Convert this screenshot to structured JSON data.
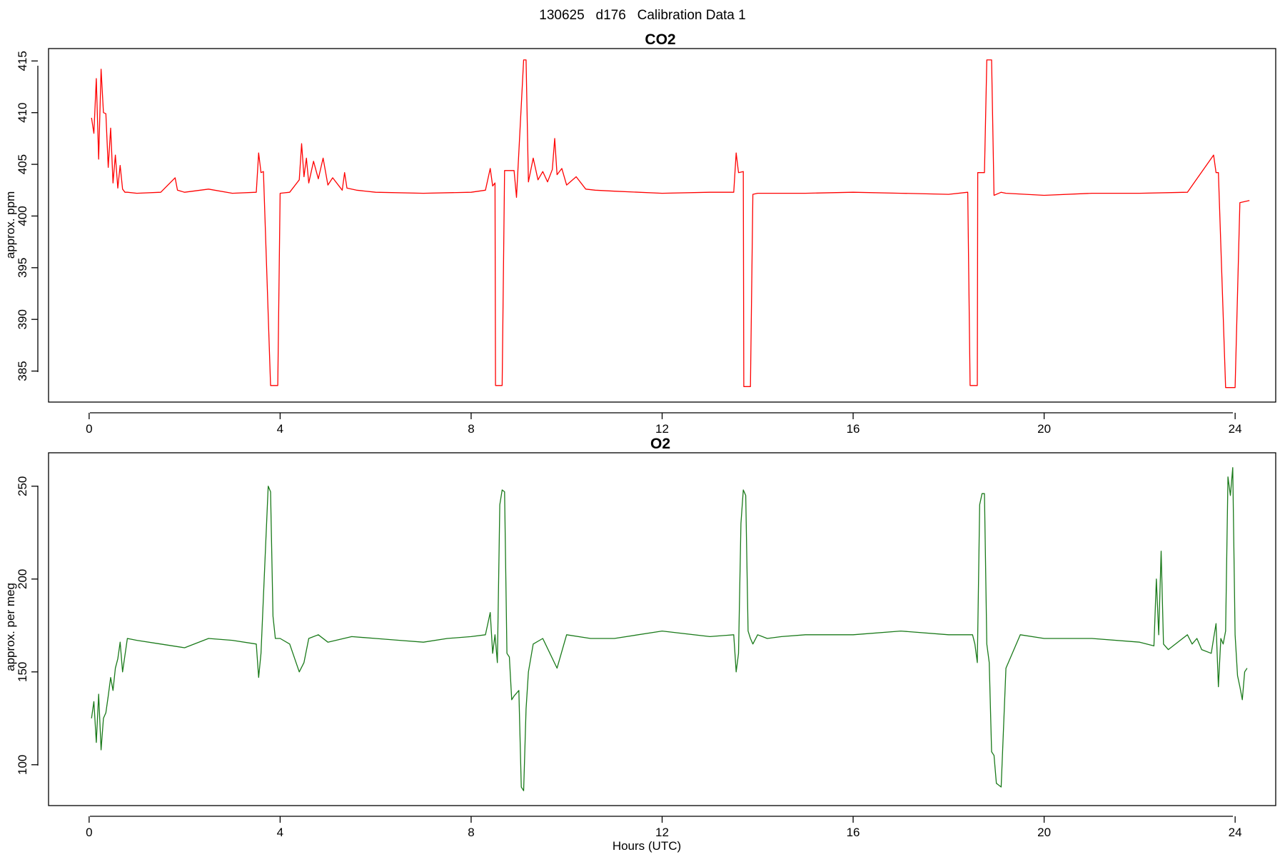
{
  "figure": {
    "suptitle": "130625   d176   Calibration Data 1"
  },
  "chart_data": [
    {
      "type": "line",
      "title": "CO2",
      "xlabel": "",
      "ylabel": "approx. ppm",
      "xlim": [
        -0.85,
        24.85
      ],
      "ylim": [
        382.0,
        416.2
      ],
      "xticks": [
        0,
        4,
        8,
        12,
        16,
        20,
        24
      ],
      "yticks": [
        385,
        390,
        395,
        400,
        405,
        410,
        415
      ],
      "grid": false,
      "color": "#ff0000",
      "series": [
        {
          "x": [
            0.05,
            0.1,
            0.15,
            0.2,
            0.25,
            0.3,
            0.35,
            0.4,
            0.45,
            0.5,
            0.55,
            0.6,
            0.65,
            0.7,
            0.75,
            0.8,
            1.0,
            1.5,
            1.8,
            1.85,
            2.0,
            2.5,
            3.0,
            3.5,
            3.55,
            3.6,
            3.65,
            3.8,
            3.81,
            3.95,
            4.0,
            4.2,
            4.4,
            4.45,
            4.5,
            4.55,
            4.6,
            4.7,
            4.8,
            4.9,
            5.0,
            5.1,
            5.3,
            5.35,
            5.4,
            5.6,
            6.0,
            7.0,
            8.0,
            8.3,
            8.4,
            8.45,
            8.5,
            8.51,
            8.65,
            8.7,
            8.75,
            8.9,
            8.95,
            9.1,
            9.15,
            9.2,
            9.3,
            9.4,
            9.5,
            9.6,
            9.7,
            9.75,
            9.8,
            9.9,
            10.0,
            10.2,
            10.4,
            10.6,
            11.0,
            12.0,
            13.0,
            13.5,
            13.55,
            13.6,
            13.7,
            13.71,
            13.85,
            13.9,
            14.0,
            15.0,
            16.0,
            17.0,
            18.0,
            18.4,
            18.45,
            18.6,
            18.61,
            18.75,
            18.8,
            18.9,
            18.95,
            19.1,
            19.2,
            20.0,
            21.0,
            22.0,
            23.0,
            23.55,
            23.6,
            23.65,
            23.8,
            23.81,
            24.0,
            24.1,
            24.2,
            24.3
          ],
          "y": [
            409.5,
            408.0,
            413.3,
            405.5,
            414.2,
            410.0,
            409.9,
            404.7,
            408.5,
            403.2,
            405.9,
            402.7,
            404.9,
            402.6,
            402.3,
            402.3,
            402.2,
            402.3,
            403.7,
            402.5,
            402.3,
            402.6,
            402.2,
            402.3,
            406.1,
            404.2,
            404.3,
            383.6,
            383.6,
            383.6,
            402.2,
            402.3,
            403.5,
            407.0,
            403.8,
            405.6,
            403.2,
            405.3,
            403.6,
            405.6,
            403.0,
            403.7,
            402.5,
            404.2,
            402.7,
            402.5,
            402.3,
            402.2,
            402.3,
            402.5,
            404.6,
            402.9,
            403.2,
            383.6,
            383.6,
            404.4,
            404.4,
            404.4,
            401.8,
            415.1,
            415.1,
            403.3,
            405.6,
            403.5,
            404.3,
            403.3,
            404.5,
            407.5,
            404.0,
            404.6,
            403.0,
            403.8,
            402.6,
            402.5,
            402.4,
            402.2,
            402.3,
            402.3,
            406.1,
            404.2,
            404.3,
            383.5,
            383.5,
            402.1,
            402.2,
            402.2,
            402.3,
            402.2,
            402.1,
            402.3,
            383.6,
            383.6,
            404.2,
            404.2,
            415.1,
            415.1,
            402.0,
            402.3,
            402.2,
            402.0,
            402.2,
            402.2,
            402.3,
            405.9,
            404.2,
            404.2,
            383.4,
            383.4,
            383.4,
            401.3,
            401.4,
            401.5
          ]
        }
      ]
    },
    {
      "type": "line",
      "title": "O2",
      "xlabel": "Hours (UTC)",
      "ylabel": "approx. per meg",
      "xlim": [
        -0.85,
        24.85
      ],
      "ylim": [
        78,
        268
      ],
      "xticks": [
        0,
        4,
        8,
        12,
        16,
        20,
        24
      ],
      "yticks": [
        100,
        150,
        200,
        250
      ],
      "grid": false,
      "color": "#1a7a1a",
      "series": [
        {
          "x": [
            0.05,
            0.1,
            0.15,
            0.2,
            0.25,
            0.3,
            0.35,
            0.4,
            0.45,
            0.5,
            0.55,
            0.6,
            0.65,
            0.7,
            0.8,
            1.0,
            1.5,
            2.0,
            2.5,
            3.0,
            3.5,
            3.55,
            3.6,
            3.7,
            3.75,
            3.8,
            3.85,
            3.9,
            4.0,
            4.2,
            4.4,
            4.5,
            4.6,
            4.8,
            5.0,
            5.5,
            6.0,
            6.5,
            7.0,
            7.5,
            8.0,
            8.3,
            8.4,
            8.45,
            8.5,
            8.55,
            8.6,
            8.65,
            8.7,
            8.75,
            8.8,
            8.85,
            8.9,
            9.0,
            9.05,
            9.1,
            9.15,
            9.2,
            9.3,
            9.5,
            9.8,
            10.0,
            10.5,
            11.0,
            12.0,
            13.0,
            13.5,
            13.55,
            13.6,
            13.65,
            13.7,
            13.75,
            13.8,
            13.85,
            13.9,
            14.0,
            14.2,
            14.5,
            15.0,
            16.0,
            17.0,
            18.0,
            18.5,
            18.55,
            18.6,
            18.65,
            18.7,
            18.75,
            18.8,
            18.85,
            18.9,
            18.95,
            19.0,
            19.1,
            19.2,
            19.5,
            20.0,
            21.0,
            22.0,
            22.3,
            22.35,
            22.4,
            22.45,
            22.5,
            22.6,
            23.0,
            23.1,
            23.2,
            23.3,
            23.5,
            23.55,
            23.6,
            23.65,
            23.7,
            23.75,
            23.8,
            23.85,
            23.9,
            23.95,
            24.0,
            24.05,
            24.1,
            24.15,
            24.2,
            24.25
          ],
          "y": [
            125,
            134,
            112,
            138,
            108,
            125,
            128,
            137,
            147,
            140,
            152,
            157,
            166,
            150,
            168,
            167,
            165,
            163,
            168,
            167,
            165,
            147,
            160,
            220,
            250,
            247,
            180,
            168,
            168,
            165,
            150,
            155,
            168,
            170,
            166,
            169,
            168,
            167,
            166,
            168,
            169,
            170,
            182,
            160,
            170,
            155,
            240,
            248,
            247,
            160,
            158,
            135,
            137,
            140,
            88,
            86,
            130,
            150,
            165,
            168,
            152,
            170,
            168,
            168,
            172,
            169,
            170,
            150,
            160,
            230,
            248,
            245,
            172,
            168,
            165,
            170,
            168,
            169,
            170,
            170,
            172,
            170,
            170,
            165,
            155,
            240,
            246,
            246,
            165,
            155,
            107,
            105,
            90,
            88,
            152,
            170,
            168,
            168,
            166,
            164,
            200,
            170,
            215,
            165,
            162,
            170,
            165,
            168,
            162,
            160,
            168,
            176,
            142,
            168,
            165,
            172,
            255,
            245,
            260,
            170,
            148,
            142,
            135,
            150,
            152
          ]
        }
      ]
    }
  ]
}
